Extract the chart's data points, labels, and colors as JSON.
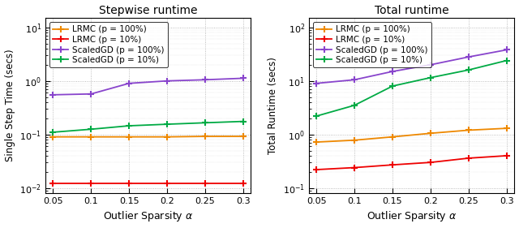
{
  "x": [
    0.05,
    0.1,
    0.15,
    0.2,
    0.25,
    0.3
  ],
  "stepwise": {
    "title": "Stepwise runtime",
    "ylabel": "Single Step Time (secs)",
    "ylim": [
      0.008,
      15
    ],
    "LRMC_100": [
      0.09,
      0.09,
      0.09,
      0.09,
      0.092,
      0.092
    ],
    "LRMC_10": [
      0.012,
      0.012,
      0.012,
      0.012,
      0.012,
      0.012
    ],
    "ScaledGD_100": [
      0.55,
      0.57,
      0.9,
      1.0,
      1.05,
      1.12
    ],
    "ScaledGD_10": [
      0.11,
      0.125,
      0.145,
      0.155,
      0.165,
      0.175
    ]
  },
  "total": {
    "title": "Total runtime",
    "ylabel": "Total Runtime (secs)",
    "ylim": [
      0.08,
      150
    ],
    "LRMC_100": [
      0.72,
      0.78,
      0.9,
      1.05,
      1.2,
      1.3
    ],
    "LRMC_10": [
      0.22,
      0.24,
      0.27,
      0.3,
      0.36,
      0.4
    ],
    "ScaledGD_100": [
      9.0,
      10.5,
      15.0,
      20.0,
      28.0,
      38.0
    ],
    "ScaledGD_10": [
      2.2,
      3.5,
      8.0,
      11.5,
      16.0,
      24.0
    ]
  },
  "colors": {
    "LRMC_100": "#EE8800",
    "LRMC_10": "#EE0000",
    "ScaledGD_100": "#8844CC",
    "ScaledGD_10": "#00AA44"
  },
  "legend_labels": {
    "LRMC_100": "LRMC (p = 100%)",
    "LRMC_10": "LRMC (p = 10%)",
    "ScaledGD_100": "ScaledGD (p = 100%)",
    "ScaledGD_10": "ScaledGD (p = 10%)"
  },
  "xlabel": "Outlier Sparsity $\\alpha$",
  "bg_color": "#F0F0F0",
  "figsize": [
    6.4,
    2.81
  ],
  "dpi": 100
}
